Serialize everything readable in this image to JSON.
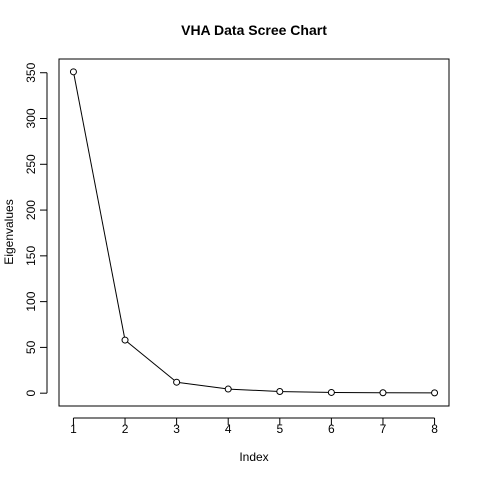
{
  "chart_data": {
    "type": "line",
    "title": "VHA Data Scree Chart",
    "xlabel": "Index",
    "ylabel": "Eigenvalues",
    "x": [
      1,
      2,
      3,
      4,
      5,
      6,
      7,
      8
    ],
    "y": [
      351,
      58,
      12,
      4.5,
      1.8,
      0.8,
      0.5,
      0.3
    ],
    "xlim": [
      0.72,
      8.28
    ],
    "ylim": [
      -14,
      365
    ],
    "xticks": [
      1,
      2,
      3,
      4,
      5,
      6,
      7,
      8
    ],
    "yticks": [
      0,
      50,
      100,
      150,
      200,
      250,
      300,
      350
    ],
    "grid": false,
    "markers": "open-circle"
  }
}
